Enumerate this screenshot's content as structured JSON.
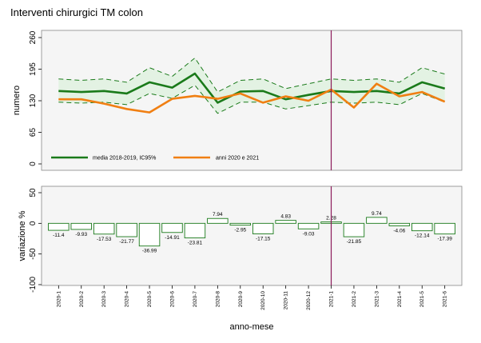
{
  "chart_data": [
    {
      "type": "line",
      "title": "Interventi chirurgici TM colon",
      "ylabel": "numero",
      "ylim": [
        0,
        260
      ],
      "yticks": [
        "0",
        "65",
        "130",
        "195",
        "260"
      ],
      "categories": [
        "2020-1",
        "2020-2",
        "2020-3",
        "2020-4",
        "2020-5",
        "2020-6",
        "2020-7",
        "2020-8",
        "2020-9",
        "2020-10",
        "2020-11",
        "2020-12",
        "2021-1",
        "2021-2",
        "2021-3",
        "2021-4",
        "2021-5",
        "2021-6"
      ],
      "series": [
        {
          "name": "media 2018-2019, IC95%",
          "color": "#1a7a1a",
          "values": [
            150,
            148,
            150,
            145,
            168,
            157,
            186,
            126,
            149,
            150,
            133,
            142,
            150,
            148,
            150,
            145,
            168,
            155
          ],
          "ci_upper": [
            175,
            172,
            175,
            168,
            198,
            180,
            218,
            148,
            172,
            175,
            155,
            165,
            175,
            172,
            175,
            168,
            198,
            185
          ],
          "ci_lower": [
            127,
            125,
            127,
            122,
            145,
            135,
            162,
            104,
            127,
            127,
            113,
            120,
            127,
            125,
            127,
            122,
            145,
            127
          ]
        },
        {
          "name": "anni 2020 e 2021",
          "color": "#f07f12",
          "values": [
            133,
            133,
            124,
            113,
            106,
            134,
            140,
            134,
            145,
            126,
            139,
            130,
            153,
            116,
            165,
            139,
            148,
            128
          ]
        }
      ],
      "vline_at": "2021-1",
      "legend_position": "bottom",
      "grid": false
    },
    {
      "type": "bar",
      "ylabel": "variazione %",
      "xlabel": "anno-mese",
      "ylim": [
        -100,
        50
      ],
      "yticks": [
        "50",
        "0",
        "-50",
        "-100"
      ],
      "categories": [
        "2020-1",
        "2020-2",
        "2020-3",
        "2020-4",
        "2020-5",
        "2020-6",
        "2020-7",
        "2020-8",
        "2020-9",
        "2020-10",
        "2020-11",
        "2020-12",
        "2021-1",
        "2021-2",
        "2021-3",
        "2021-4",
        "2021-5",
        "2021-6"
      ],
      "values": [
        -11.4,
        -9.93,
        -17.53,
        -21.77,
        -36.99,
        -14.91,
        -23.81,
        7.94,
        -2.95,
        -17.15,
        4.83,
        -9.03,
        2.28,
        -21.85,
        9.74,
        -4.06,
        -12.14,
        -17.39
      ],
      "labels": [
        "-11.4",
        "-9.93",
        "-17.53",
        "-21.77",
        "-36.99",
        "-14.91",
        "-23.81",
        "7.94",
        "-2.95",
        "-17.15",
        "4.83",
        "-9.03",
        "2.28",
        "-21.85",
        "9.74",
        "-4.06",
        "-12.14",
        "-17.39"
      ],
      "bar_color": "#1a7a1a",
      "vline_at": "2021-1",
      "grid": false
    }
  ],
  "colors": {
    "plot_bg": "#f5f5f5",
    "ci_fill": "#e3f2e3",
    "vline": "#8b1a5a"
  }
}
